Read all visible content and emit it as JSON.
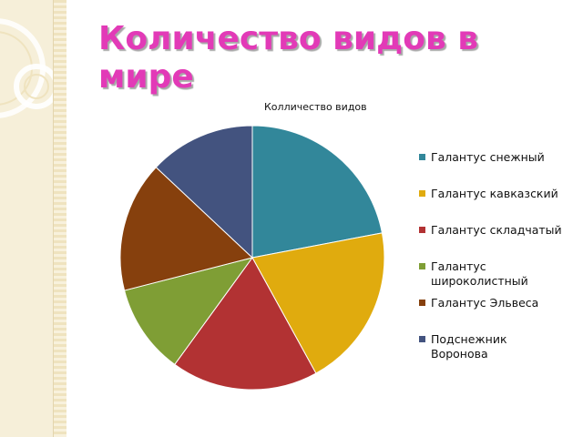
{
  "slide": {
    "title": "Количество видов в мире"
  },
  "chart_data": {
    "type": "pie",
    "title": "Колличество видов",
    "legend_position": "right",
    "slices": [
      {
        "label": "Галантус снежный",
        "value": 22,
        "color": "#32879a"
      },
      {
        "label": "Галантус кавказский",
        "value": 20,
        "color": "#e0ab0e"
      },
      {
        "label": "Галантус складчатый",
        "value": 18,
        "color": "#b23233"
      },
      {
        "label": "Галантус широколистный",
        "value": 11,
        "color": "#7f9e35"
      },
      {
        "label": "Галантус Эльвеса",
        "value": 16,
        "color": "#86400d"
      },
      {
        "label": "Подснежник Воронова",
        "value": 13,
        "color": "#43537f"
      }
    ]
  }
}
